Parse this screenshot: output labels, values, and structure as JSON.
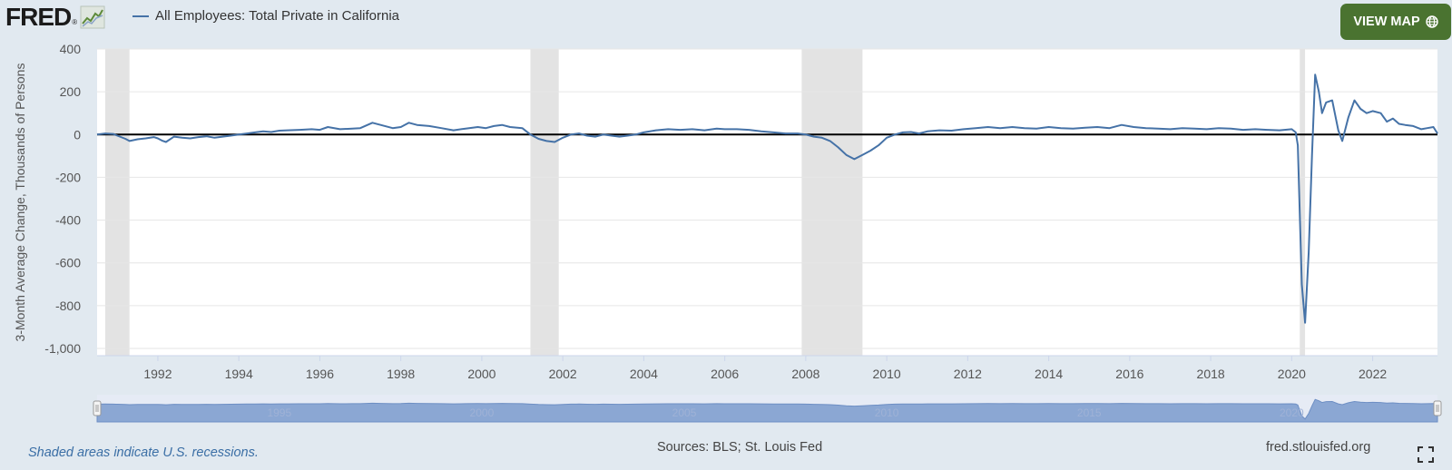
{
  "header": {
    "logo_text": "FRED",
    "logo_mark": "®",
    "legend_label": "All Employees: Total Private in California",
    "view_map_label": "VIEW MAP",
    "view_map_icon": "globe-icon"
  },
  "footer": {
    "note": "Shaded areas indicate U.S. recessions.",
    "sources": "Sources: BLS; St. Louis Fed",
    "url": "fred.stlouisfed.org",
    "fullscreen_icon": "fullscreen-icon"
  },
  "colors": {
    "series": "#4572a7",
    "recession": "#e3e3e3",
    "button": "#4a7330",
    "background": "#e1e9f0",
    "navigator_fill": "#8ba7d3"
  },
  "chart_data": {
    "type": "line",
    "title": "",
    "xlabel": "",
    "ylabel": "3-Month Average Change, Thousands of Persons",
    "ylim": [
      -1000,
      400
    ],
    "yticks": [
      400,
      200,
      0,
      -200,
      -400,
      -600,
      -800,
      -1000
    ],
    "ytick_labels": [
      "400",
      "200",
      "0",
      "-200",
      "-400",
      "-600",
      "-800",
      "-1,000"
    ],
    "xlim": [
      1990.5,
      2023.6
    ],
    "xticks": [
      1992,
      1994,
      1996,
      1998,
      2000,
      2002,
      2004,
      2006,
      2008,
      2010,
      2012,
      2014,
      2016,
      2018,
      2020,
      2022
    ],
    "xtick_labels": [
      "1992",
      "1994",
      "1996",
      "1998",
      "2000",
      "2002",
      "2004",
      "2006",
      "2008",
      "2010",
      "2012",
      "2014",
      "2016",
      "2018",
      "2020",
      "2022"
    ],
    "grid": true,
    "zero_line": true,
    "legend": "top-left",
    "recessions": [
      [
        1990.7,
        1991.3
      ],
      [
        2001.2,
        2001.9
      ],
      [
        2007.9,
        2009.4
      ],
      [
        2020.2,
        2020.33
      ]
    ],
    "navigator_labels": [
      "1995",
      "2000",
      "2005",
      "2010",
      "2015",
      "2020"
    ],
    "navigator_label_years": [
      1995,
      2000,
      2005,
      2010,
      2015,
      2020
    ],
    "series": [
      {
        "name": "All Employees: Total Private in California",
        "points": [
          [
            1990.5,
            0
          ],
          [
            1990.7,
            5
          ],
          [
            1990.9,
            3
          ],
          [
            1991.0,
            -5
          ],
          [
            1991.2,
            -20
          ],
          [
            1991.3,
            -30
          ],
          [
            1991.5,
            -22
          ],
          [
            1991.7,
            -18
          ],
          [
            1991.9,
            -12
          ],
          [
            1992.0,
            -18
          ],
          [
            1992.1,
            -28
          ],
          [
            1992.2,
            -35
          ],
          [
            1992.4,
            -10
          ],
          [
            1992.6,
            -15
          ],
          [
            1992.8,
            -18
          ],
          [
            1993.0,
            -12
          ],
          [
            1993.2,
            -8
          ],
          [
            1993.4,
            -15
          ],
          [
            1993.6,
            -10
          ],
          [
            1993.8,
            -5
          ],
          [
            1994.0,
            0
          ],
          [
            1994.2,
            5
          ],
          [
            1994.4,
            10
          ],
          [
            1994.6,
            15
          ],
          [
            1994.8,
            12
          ],
          [
            1995.0,
            18
          ],
          [
            1995.2,
            20
          ],
          [
            1995.5,
            22
          ],
          [
            1995.8,
            25
          ],
          [
            1996.0,
            22
          ],
          [
            1996.2,
            35
          ],
          [
            1996.5,
            25
          ],
          [
            1996.8,
            28
          ],
          [
            1997.0,
            30
          ],
          [
            1997.3,
            55
          ],
          [
            1997.5,
            45
          ],
          [
            1997.8,
            30
          ],
          [
            1998.0,
            35
          ],
          [
            1998.2,
            55
          ],
          [
            1998.4,
            45
          ],
          [
            1998.7,
            40
          ],
          [
            1999.0,
            30
          ],
          [
            1999.3,
            20
          ],
          [
            1999.6,
            28
          ],
          [
            1999.9,
            35
          ],
          [
            2000.1,
            30
          ],
          [
            2000.3,
            40
          ],
          [
            2000.5,
            45
          ],
          [
            2000.7,
            35
          ],
          [
            2001.0,
            30
          ],
          [
            2001.2,
            0
          ],
          [
            2001.4,
            -20
          ],
          [
            2001.6,
            -30
          ],
          [
            2001.8,
            -35
          ],
          [
            2002.0,
            -15
          ],
          [
            2002.2,
            0
          ],
          [
            2002.4,
            5
          ],
          [
            2002.6,
            -5
          ],
          [
            2002.8,
            -10
          ],
          [
            2003.0,
            0
          ],
          [
            2003.2,
            -5
          ],
          [
            2003.4,
            -10
          ],
          [
            2003.6,
            -5
          ],
          [
            2003.8,
            0
          ],
          [
            2004.0,
            10
          ],
          [
            2004.3,
            20
          ],
          [
            2004.6,
            25
          ],
          [
            2004.9,
            22
          ],
          [
            2005.2,
            25
          ],
          [
            2005.5,
            20
          ],
          [
            2005.8,
            28
          ],
          [
            2006.0,
            25
          ],
          [
            2006.3,
            25
          ],
          [
            2006.6,
            22
          ],
          [
            2006.9,
            15
          ],
          [
            2007.2,
            10
          ],
          [
            2007.5,
            5
          ],
          [
            2007.8,
            5
          ],
          [
            2008.0,
            0
          ],
          [
            2008.2,
            -10
          ],
          [
            2008.4,
            -15
          ],
          [
            2008.6,
            -30
          ],
          [
            2008.8,
            -60
          ],
          [
            2009.0,
            -95
          ],
          [
            2009.2,
            -115
          ],
          [
            2009.4,
            -95
          ],
          [
            2009.6,
            -75
          ],
          [
            2009.8,
            -50
          ],
          [
            2010.0,
            -15
          ],
          [
            2010.2,
            0
          ],
          [
            2010.4,
            10
          ],
          [
            2010.6,
            12
          ],
          [
            2010.8,
            5
          ],
          [
            2011.0,
            15
          ],
          [
            2011.3,
            20
          ],
          [
            2011.6,
            18
          ],
          [
            2011.9,
            25
          ],
          [
            2012.2,
            30
          ],
          [
            2012.5,
            35
          ],
          [
            2012.8,
            30
          ],
          [
            2013.1,
            35
          ],
          [
            2013.4,
            30
          ],
          [
            2013.7,
            28
          ],
          [
            2014.0,
            35
          ],
          [
            2014.3,
            30
          ],
          [
            2014.6,
            28
          ],
          [
            2014.9,
            32
          ],
          [
            2015.2,
            35
          ],
          [
            2015.5,
            30
          ],
          [
            2015.8,
            45
          ],
          [
            2016.1,
            35
          ],
          [
            2016.4,
            30
          ],
          [
            2016.7,
            28
          ],
          [
            2017.0,
            25
          ],
          [
            2017.3,
            30
          ],
          [
            2017.6,
            28
          ],
          [
            2017.9,
            25
          ],
          [
            2018.2,
            30
          ],
          [
            2018.5,
            28
          ],
          [
            2018.8,
            22
          ],
          [
            2019.1,
            25
          ],
          [
            2019.4,
            22
          ],
          [
            2019.7,
            20
          ],
          [
            2020.0,
            25
          ],
          [
            2020.1,
            10
          ],
          [
            2020.15,
            -50
          ],
          [
            2020.25,
            -700
          ],
          [
            2020.33,
            -880
          ],
          [
            2020.42,
            -550
          ],
          [
            2020.5,
            -100
          ],
          [
            2020.58,
            280
          ],
          [
            2020.67,
            200
          ],
          [
            2020.75,
            100
          ],
          [
            2020.85,
            150
          ],
          [
            2021.0,
            160
          ],
          [
            2021.15,
            20
          ],
          [
            2021.25,
            -30
          ],
          [
            2021.4,
            80
          ],
          [
            2021.55,
            160
          ],
          [
            2021.7,
            120
          ],
          [
            2021.85,
            100
          ],
          [
            2022.0,
            110
          ],
          [
            2022.2,
            100
          ],
          [
            2022.35,
            60
          ],
          [
            2022.5,
            75
          ],
          [
            2022.65,
            50
          ],
          [
            2022.8,
            45
          ],
          [
            2023.0,
            40
          ],
          [
            2023.2,
            25
          ],
          [
            2023.35,
            30
          ],
          [
            2023.5,
            35
          ],
          [
            2023.6,
            5
          ]
        ]
      }
    ]
  }
}
